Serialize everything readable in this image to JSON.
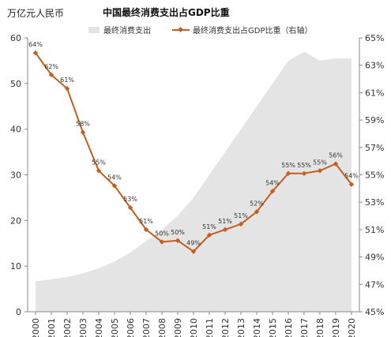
{
  "chart_data": {
    "type": "line",
    "title": "中国最终消费支出占GDP比重",
    "ylabel": "万亿元人民币",
    "x": [
      "2000",
      "2001",
      "2002",
      "2003",
      "2004",
      "2005",
      "2006",
      "2007",
      "2008",
      "2009",
      "2010",
      "2011",
      "2012",
      "2013",
      "2014",
      "2015",
      "2016",
      "2017",
      "2018",
      "2019",
      "2020"
    ],
    "ylim": [
      0,
      60
    ],
    "yticks": [
      "0",
      "10",
      "20",
      "30",
      "40",
      "50",
      "60"
    ],
    "y2lim": [
      45,
      65
    ],
    "y2ticks": [
      "45%",
      "47%",
      "49%",
      "51%",
      "53%",
      "55%",
      "57%",
      "59%",
      "61%",
      "63%",
      "65%"
    ],
    "grid": false,
    "legend_position": "top",
    "series": [
      {
        "name": "最终消费支出",
        "kind": "area",
        "axis": "left",
        "color": "#e4e4e4",
        "values": [
          6.7,
          7.1,
          7.6,
          8.4,
          9.5,
          11.0,
          13.0,
          15.5,
          18.0,
          21.0,
          25.0,
          30.0,
          35.0,
          40.0,
          45.0,
          50.0,
          55.0,
          57.0,
          55.0,
          55.5,
          55.5
        ]
      },
      {
        "name": "最终消费支出占GDP比重（右轴）",
        "kind": "line",
        "axis": "right",
        "color": "#c25e1e",
        "values": [
          63.9,
          62.3,
          61.3,
          58.1,
          55.3,
          54.2,
          52.6,
          51.0,
          50.1,
          50.2,
          49.4,
          50.6,
          51.0,
          51.4,
          52.3,
          53.8,
          55.1,
          55.1,
          55.3,
          55.8,
          54.3
        ],
        "labels": [
          "64%",
          "62%",
          "61%",
          "58%",
          "55%",
          "54%",
          "53%",
          "51%",
          "50%",
          "50%",
          "49%",
          "51%",
          "51%",
          "51%",
          "52%",
          "54%",
          "55%",
          "55%",
          "55%",
          "56%",
          "54%"
        ]
      }
    ]
  }
}
